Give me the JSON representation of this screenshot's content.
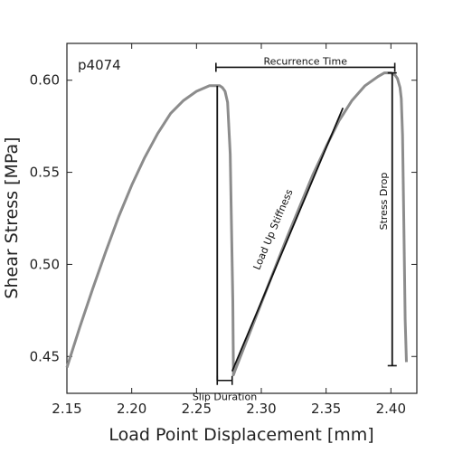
{
  "chart_data": {
    "type": "line",
    "corner_label": "p4074",
    "xlabel": "Load Point Displacement [mm]",
    "ylabel": "Shear Stress [MPa]",
    "xlim": [
      2.15,
      2.42
    ],
    "ylim": [
      0.43,
      0.62
    ],
    "xticks": [
      "2.15",
      "2.20",
      "2.25",
      "2.30",
      "2.35",
      "2.40"
    ],
    "yticks": [
      "0.45",
      "0.50",
      "0.55",
      "0.60"
    ],
    "grid": false,
    "series": [
      {
        "color": "#8c8c8c",
        "x": [
          2.15,
          2.16,
          2.17,
          2.18,
          2.19,
          2.2,
          2.21,
          2.22,
          2.23,
          2.24,
          2.25,
          2.26,
          2.265,
          2.268,
          2.27,
          2.272,
          2.274,
          2.276,
          2.278,
          2.2785,
          2.2795,
          2.29,
          2.3,
          2.31,
          2.32,
          2.33,
          2.34,
          2.35,
          2.36,
          2.37,
          2.38,
          2.39,
          2.395,
          2.4,
          2.403,
          2.405,
          2.407,
          2.408,
          2.409,
          2.41,
          2.411,
          2.412
        ],
        "y": [
          0.444,
          0.466,
          0.487,
          0.507,
          0.526,
          0.543,
          0.558,
          0.571,
          0.582,
          0.589,
          0.594,
          0.597,
          0.597,
          0.597,
          0.596,
          0.594,
          0.588,
          0.56,
          0.48,
          0.44,
          0.442,
          0.461,
          0.479,
          0.497,
          0.515,
          0.532,
          0.549,
          0.564,
          0.578,
          0.589,
          0.597,
          0.602,
          0.604,
          0.604,
          0.603,
          0.601,
          0.596,
          0.59,
          0.57,
          0.52,
          0.47,
          0.447
        ]
      }
    ],
    "annotations": {
      "recurrence_time": {
        "label": "Recurrence Time",
        "x_start": 2.265,
        "x_end": 2.403,
        "y": 0.607
      },
      "stress_drop": {
        "label": "Stress Drop",
        "x": 2.401,
        "y_top": 0.604,
        "y_bottom": 0.445
      },
      "slip_duration": {
        "label": "Slip Duration",
        "x_start": 2.266,
        "x_end": 2.2775,
        "y": 0.437
      },
      "load_up_stiffness": {
        "label": "Load Up Stiffness",
        "x_start": 2.2775,
        "y_start": 0.442,
        "x_end": 2.363,
        "y_end": 0.585
      },
      "slip_marker": {
        "x": 2.266,
        "y_top": 0.597,
        "y_bottom": 0.437
      }
    }
  }
}
